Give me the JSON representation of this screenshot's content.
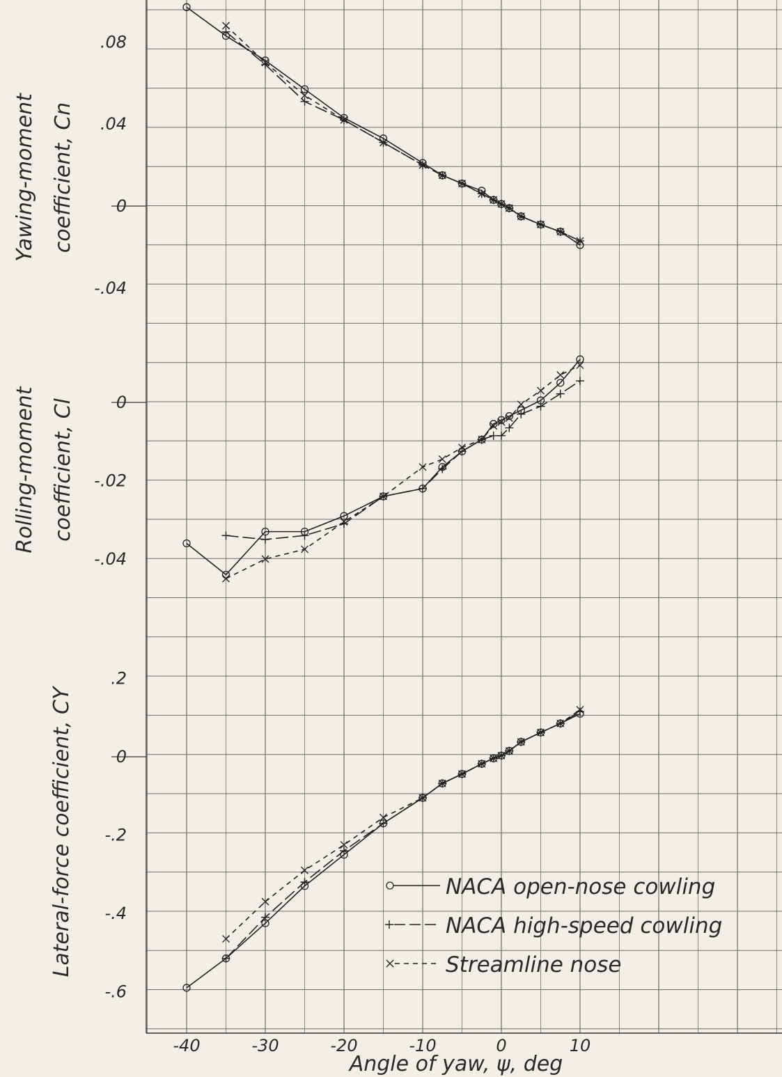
{
  "x_axis": {
    "label": "Angle of yaw, ψ, deg",
    "ticks": [
      -40,
      -30,
      -20,
      -10,
      0,
      10
    ],
    "tick_labels": [
      "-40",
      "-30",
      "-20",
      "-10",
      "0",
      "10"
    ]
  },
  "legend": {
    "entries": [
      {
        "label": "NACA open-nose cowling",
        "marker": "circle",
        "line": "solid"
      },
      {
        "label": "NACA high-speed cowling",
        "marker": "plus",
        "line": "long-dash"
      },
      {
        "label": "Streamline nose",
        "marker": "cross",
        "line": "short-dash"
      }
    ]
  },
  "colors": {
    "paper": "#f3efe6",
    "grid": "#6d6d6d",
    "ink": "#222222"
  },
  "chart_data": [
    {
      "type": "line",
      "ylabel": [
        "Yawing-moment",
        "coefficient, Cn"
      ],
      "ylim": [
        -0.04,
        0.1
      ],
      "yticks": [
        0.08,
        0.04,
        0,
        -0.04
      ],
      "ytick_labels": [
        ".08",
        ".04",
        "0",
        "-.04"
      ],
      "xlim": [
        -45,
        10
      ],
      "series": [
        {
          "name": "NACA open-nose cowling",
          "x": [
            -40,
            -35,
            -30,
            -25,
            -20,
            -15,
            -10,
            -7.5,
            -5,
            -2.5,
            -1,
            0,
            1,
            2.5,
            5,
            7.5,
            10
          ],
          "y": [
            0.097,
            0.083,
            0.071,
            0.057,
            0.043,
            0.033,
            0.021,
            0.015,
            0.011,
            0.0075,
            0.003,
            0.001,
            -0.001,
            -0.005,
            -0.009,
            -0.0125,
            -0.019
          ]
        },
        {
          "name": "NACA high-speed cowling",
          "x": [
            -35,
            -30,
            -25,
            -20,
            -15,
            -10,
            -7.5,
            -5,
            -2.5,
            -1,
            0,
            1,
            2.5,
            5,
            7.5,
            10
          ],
          "y": [
            0.085,
            0.069,
            0.051,
            0.042,
            0.031,
            0.02,
            0.015,
            0.011,
            0.006,
            0.003,
            0.001,
            -0.001,
            -0.005,
            -0.009,
            -0.0125,
            -0.017
          ]
        },
        {
          "name": "Streamline nose",
          "x": [
            -35,
            -30,
            -25,
            -20,
            -15,
            -10,
            -7.5,
            -5,
            -2.5,
            -1,
            0,
            1,
            2.5,
            5,
            7.5,
            10
          ],
          "y": [
            0.088,
            0.07,
            0.054,
            0.042,
            0.031,
            0.02,
            0.015,
            0.011,
            0.006,
            0.003,
            0.001,
            -0.001,
            -0.005,
            -0.009,
            -0.0125,
            -0.017
          ]
        }
      ]
    },
    {
      "type": "line",
      "ylabel": [
        "Rolling-moment",
        "coefficient, Cl"
      ],
      "ylim": [
        -0.05,
        0.01
      ],
      "yticks": [
        0,
        -0.02,
        -0.04
      ],
      "ytick_labels": [
        "0",
        "-.02",
        "-.04"
      ],
      "xlim": [
        -45,
        10
      ],
      "series": [
        {
          "name": "NACA open-nose cowling",
          "x": [
            -40,
            -35,
            -30,
            -25,
            -20,
            -15,
            -10,
            -7.5,
            -5,
            -2.5,
            -1,
            0,
            1,
            2.5,
            5,
            7.5,
            10
          ],
          "y": [
            -0.036,
            -0.044,
            -0.033,
            -0.033,
            -0.029,
            -0.024,
            -0.022,
            -0.0165,
            -0.0125,
            -0.0095,
            -0.0055,
            -0.0045,
            -0.0035,
            -0.002,
            0.0005,
            0.005,
            0.011
          ]
        },
        {
          "name": "NACA high-speed cowling",
          "x": [
            -35,
            -30,
            -25,
            -20,
            -15,
            -10,
            -7.5,
            -5,
            -2.5,
            -1,
            0,
            1,
            2.5,
            5,
            7.5,
            10
          ],
          "y": [
            -0.034,
            -0.035,
            -0.034,
            -0.031,
            -0.024,
            -0.022,
            -0.017,
            -0.0125,
            -0.0095,
            -0.0085,
            -0.0085,
            -0.0065,
            -0.003,
            -0.001,
            0.0022,
            0.0055
          ]
        },
        {
          "name": "Streamline nose",
          "x": [
            -35,
            -30,
            -25,
            -20,
            -15,
            -10,
            -7.5,
            -5,
            -2.5,
            -1,
            0,
            1,
            2.5,
            5,
            7.5,
            10
          ],
          "y": [
            -0.045,
            -0.04,
            -0.0375,
            -0.0305,
            -0.024,
            -0.0165,
            -0.0145,
            -0.0115,
            -0.0095,
            -0.006,
            -0.005,
            -0.004,
            -0.0005,
            0.003,
            0.007,
            0.0095
          ]
        }
      ]
    },
    {
      "type": "line",
      "ylabel": [
        "Lateral-force coefficient, CY"
      ],
      "ylim": [
        -0.7,
        0.3
      ],
      "yticks": [
        0.2,
        0,
        -0.2,
        -0.4,
        -0.6
      ],
      "ytick_labels": [
        ".2",
        "0",
        "-.2",
        "-.4",
        "-.6"
      ],
      "xlim": [
        -45,
        10
      ],
      "series": [
        {
          "name": "NACA open-nose cowling",
          "x": [
            -40,
            -35,
            -30,
            -25,
            -20,
            -15,
            -10,
            -7.5,
            -5,
            -2.5,
            -1,
            0,
            1,
            2.5,
            5,
            7.5,
            10
          ],
          "y": [
            -0.59,
            -0.515,
            -0.425,
            -0.33,
            -0.25,
            -0.17,
            -0.105,
            -0.068,
            -0.044,
            -0.018,
            -0.004,
            0.003,
            0.015,
            0.038,
            0.062,
            0.085,
            0.11
          ]
        },
        {
          "name": "NACA high-speed cowling",
          "x": [
            -35,
            -30,
            -25,
            -20,
            -15,
            -10,
            -7.5,
            -5,
            -2.5,
            -1,
            0,
            1,
            2.5,
            5,
            7.5,
            10
          ],
          "y": [
            -0.515,
            -0.41,
            -0.32,
            -0.24,
            -0.17,
            -0.105,
            -0.068,
            -0.044,
            -0.018,
            -0.004,
            0.003,
            0.015,
            0.038,
            0.062,
            0.085,
            0.115
          ]
        },
        {
          "name": "Streamline nose",
          "x": [
            -35,
            -30,
            -25,
            -20,
            -15,
            -10,
            -7.5,
            -5,
            -2.5,
            -1,
            0,
            1,
            2.5,
            5,
            7.5,
            10
          ],
          "y": [
            -0.465,
            -0.37,
            -0.29,
            -0.225,
            -0.155,
            -0.105,
            -0.068,
            -0.044,
            -0.018,
            -0.004,
            0.003,
            0.015,
            0.038,
            0.062,
            0.085,
            0.12
          ]
        }
      ]
    }
  ]
}
